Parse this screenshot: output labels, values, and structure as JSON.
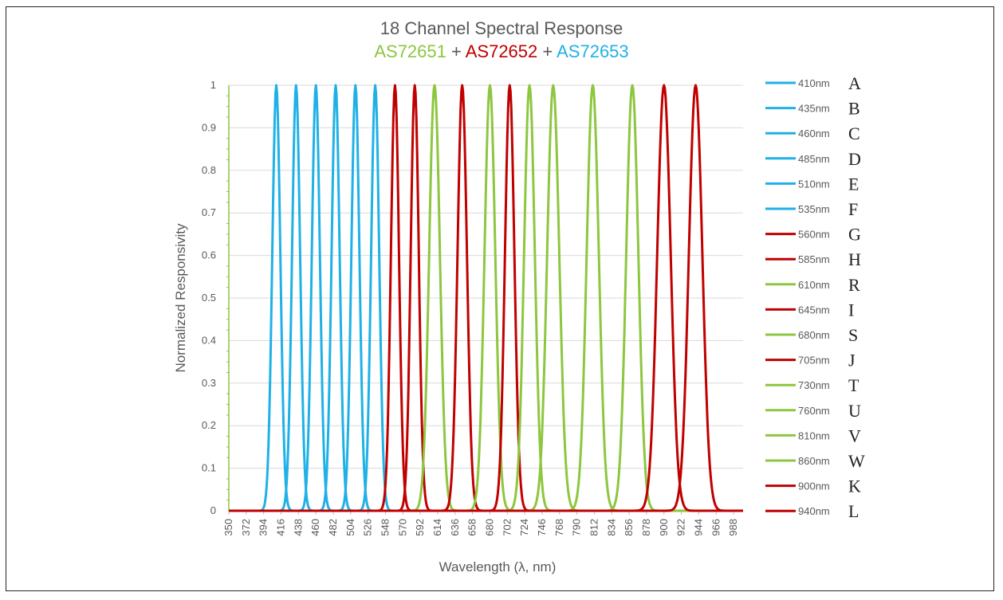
{
  "chart_data": {
    "type": "line",
    "title": "18 Channel Spectral Response",
    "subtitle_parts": [
      {
        "text": "AS72651",
        "color": "#8dc63f"
      },
      {
        "text": " + ",
        "color": "#595959"
      },
      {
        "text": "AS72652",
        "color": "#c00000"
      },
      {
        "text": " + ",
        "color": "#595959"
      },
      {
        "text": "AS72653",
        "color": "#1fb1e6"
      }
    ],
    "xlabel": "Wavelength (λ, nm)",
    "ylabel": "Normalized Responsivity",
    "xlim": [
      350,
      1000
    ],
    "ylim": [
      0,
      1
    ],
    "x_ticks": [
      350,
      372,
      394,
      416,
      438,
      460,
      482,
      504,
      526,
      548,
      570,
      592,
      614,
      636,
      658,
      680,
      702,
      724,
      746,
      768,
      790,
      812,
      834,
      856,
      878,
      900,
      922,
      944,
      966,
      988
    ],
    "y_ticks": [
      {
        "value": 0,
        "label": "0"
      },
      {
        "value": 0.1,
        "label": "0.1"
      },
      {
        "value": 0.2,
        "label": "0.2"
      },
      {
        "value": 0.3,
        "label": "0.3"
      },
      {
        "value": 0.4,
        "label": "0.4"
      },
      {
        "value": 0.5,
        "label": "0.5"
      },
      {
        "value": 0.6,
        "label": "0.6"
      },
      {
        "value": 0.7,
        "label": "0.7"
      },
      {
        "value": 0.8,
        "label": "0.8"
      },
      {
        "value": 0.9,
        "label": "0.9"
      },
      {
        "value": 1,
        "label": "1"
      }
    ],
    "grid": "horizontal",
    "legend_position": "right",
    "series": [
      {
        "name": "410nm",
        "letter": "A",
        "peak": 410,
        "fwhm": 12,
        "color": "#1fb1e6"
      },
      {
        "name": "435nm",
        "letter": "B",
        "peak": 435,
        "fwhm": 12,
        "color": "#1fb1e6"
      },
      {
        "name": "460nm",
        "letter": "C",
        "peak": 460,
        "fwhm": 12,
        "color": "#1fb1e6"
      },
      {
        "name": "485nm",
        "letter": "D",
        "peak": 485,
        "fwhm": 12,
        "color": "#1fb1e6"
      },
      {
        "name": "510nm",
        "letter": "E",
        "peak": 510,
        "fwhm": 12,
        "color": "#1fb1e6"
      },
      {
        "name": "535nm",
        "letter": "F",
        "peak": 535,
        "fwhm": 12,
        "color": "#1fb1e6"
      },
      {
        "name": "560nm",
        "letter": "G",
        "peak": 560,
        "fwhm": 12,
        "color": "#c00000"
      },
      {
        "name": "585nm",
        "letter": "H",
        "peak": 585,
        "fwhm": 12,
        "color": "#c00000"
      },
      {
        "name": "610nm",
        "letter": "R",
        "peak": 610,
        "fwhm": 16,
        "color": "#8dc63f"
      },
      {
        "name": "645nm",
        "letter": "I",
        "peak": 645,
        "fwhm": 14,
        "color": "#c00000"
      },
      {
        "name": "680nm",
        "letter": "S",
        "peak": 680,
        "fwhm": 16,
        "color": "#8dc63f"
      },
      {
        "name": "705nm",
        "letter": "J",
        "peak": 705,
        "fwhm": 14,
        "color": "#c00000"
      },
      {
        "name": "730nm",
        "letter": "T",
        "peak": 730,
        "fwhm": 16,
        "color": "#8dc63f"
      },
      {
        "name": "760nm",
        "letter": "U",
        "peak": 760,
        "fwhm": 18,
        "color": "#8dc63f"
      },
      {
        "name": "810nm",
        "letter": "V",
        "peak": 810,
        "fwhm": 18,
        "color": "#8dc63f"
      },
      {
        "name": "860nm",
        "letter": "W",
        "peak": 860,
        "fwhm": 18,
        "color": "#8dc63f"
      },
      {
        "name": "900nm",
        "letter": "K",
        "peak": 900,
        "fwhm": 20,
        "color": "#c00000"
      },
      {
        "name": "940nm",
        "letter": "L",
        "peak": 940,
        "fwhm": 20,
        "color": "#c00000"
      }
    ]
  }
}
